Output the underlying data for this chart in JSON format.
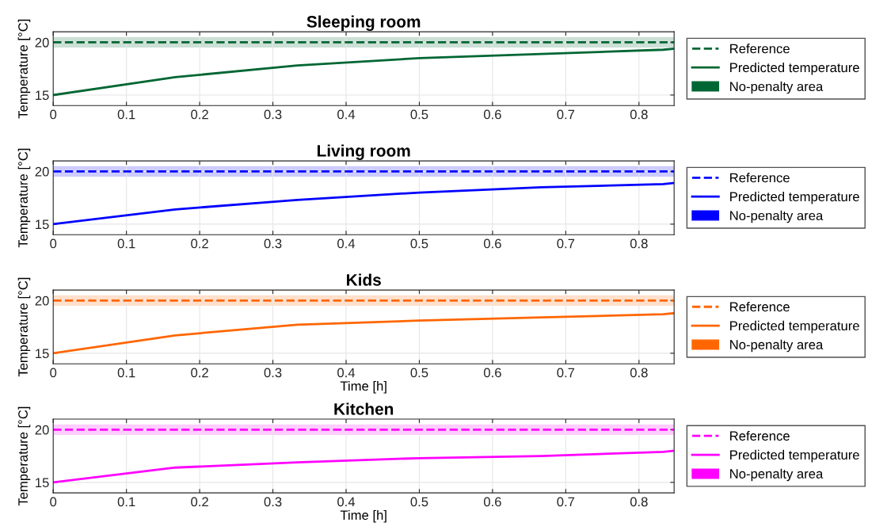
{
  "chart_data": [
    {
      "type": "line",
      "title": "Sleeping room",
      "ylabel": "Temperature [°C]",
      "x": [
        0,
        0.1667,
        0.3333,
        0.5,
        0.6667,
        0.8333,
        0.848
      ],
      "xlim": [
        0,
        0.848
      ],
      "xticks": [
        0,
        0.1,
        0.2,
        0.3,
        0.4,
        0.5,
        0.6,
        0.7,
        0.8
      ],
      "ylim": [
        14,
        21
      ],
      "yticks": [
        15,
        20
      ],
      "grid": true,
      "legend": "right",
      "line_style": "solid",
      "series": [
        {
          "name": "Reference",
          "color": "#006633",
          "line_style": "dashed",
          "values": [
            20,
            20,
            20,
            20,
            20,
            20,
            20
          ]
        },
        {
          "name": "Predicted temperature",
          "color": "#006633",
          "values": [
            15,
            16.7,
            17.8,
            18.5,
            18.9,
            19.3,
            19.4
          ]
        }
      ],
      "bands": [
        {
          "axis": "y",
          "from": 19.5,
          "to": 20.5,
          "label": "No-penalty area",
          "color": "#006633"
        }
      ]
    },
    {
      "type": "line",
      "title": "Living room",
      "ylabel": "Temperature [°C]",
      "x": [
        0,
        0.1667,
        0.3333,
        0.5,
        0.6667,
        0.8333,
        0.848
      ],
      "xlim": [
        0,
        0.848
      ],
      "xticks": [
        0,
        0.1,
        0.2,
        0.3,
        0.4,
        0.5,
        0.6,
        0.7,
        0.8
      ],
      "ylim": [
        14,
        21
      ],
      "yticks": [
        15,
        20
      ],
      "grid": true,
      "legend": "right",
      "line_style": "solid",
      "series": [
        {
          "name": "Reference",
          "color": "#0000ff",
          "line_style": "dashed",
          "values": [
            20,
            20,
            20,
            20,
            20,
            20,
            20
          ]
        },
        {
          "name": "Predicted temperature",
          "color": "#0000ff",
          "values": [
            15,
            16.4,
            17.3,
            18.0,
            18.5,
            18.8,
            18.9
          ]
        }
      ],
      "bands": [
        {
          "axis": "y",
          "from": 19.5,
          "to": 20.5,
          "label": "No-penalty area",
          "color": "#0000ff"
        }
      ]
    },
    {
      "type": "line",
      "title": "Kids",
      "xlabel": "Time [h]",
      "ylabel": "Temperature [°C]",
      "x": [
        0,
        0.1667,
        0.3333,
        0.5,
        0.6667,
        0.8333,
        0.848
      ],
      "xlim": [
        0,
        0.848
      ],
      "xticks": [
        0,
        0.1,
        0.2,
        0.3,
        0.4,
        0.5,
        0.6,
        0.7,
        0.8
      ],
      "ylim": [
        14,
        21
      ],
      "yticks": [
        15,
        20
      ],
      "grid": true,
      "legend": "right",
      "line_style": "solid",
      "series": [
        {
          "name": "Reference",
          "color": "#ff6600",
          "line_style": "dashed",
          "values": [
            20,
            20,
            20,
            20,
            20,
            20,
            20
          ]
        },
        {
          "name": "Predicted temperature",
          "color": "#ff6600",
          "values": [
            15,
            16.7,
            17.7,
            18.1,
            18.4,
            18.7,
            18.8
          ]
        }
      ],
      "bands": [
        {
          "axis": "y",
          "from": 19.5,
          "to": 20.5,
          "label": "No-penalty area",
          "color": "#ff6600"
        }
      ]
    },
    {
      "type": "line",
      "title": "Kitchen",
      "xlabel": "Time [h]",
      "ylabel": "Temperature [°C]",
      "x": [
        0,
        0.1667,
        0.3333,
        0.5,
        0.6667,
        0.8333,
        0.848
      ],
      "xlim": [
        0,
        0.848
      ],
      "xticks": [
        0,
        0.1,
        0.2,
        0.3,
        0.4,
        0.5,
        0.6,
        0.7,
        0.8
      ],
      "ylim": [
        14,
        21
      ],
      "yticks": [
        15,
        20
      ],
      "grid": true,
      "legend": "right",
      "line_style": "solid",
      "series": [
        {
          "name": "Reference",
          "color": "#ff00ff",
          "line_style": "dashed",
          "values": [
            20,
            20,
            20,
            20,
            20,
            20,
            20
          ]
        },
        {
          "name": "Predicted temperature",
          "color": "#ff00ff",
          "values": [
            15,
            16.4,
            16.9,
            17.3,
            17.5,
            17.9,
            18.0
          ]
        }
      ],
      "bands": [
        {
          "axis": "y",
          "from": 19.5,
          "to": 20.5,
          "label": "No-penalty area",
          "color": "#ff00ff"
        }
      ]
    }
  ]
}
